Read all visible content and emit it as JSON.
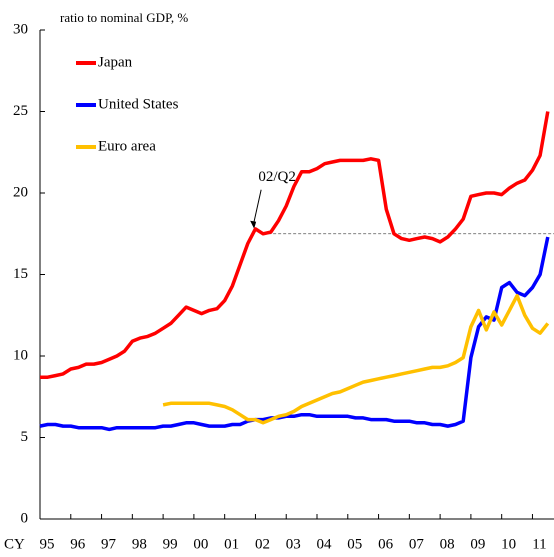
{
  "chart_data": {
    "type": "line",
    "y_label": "ratio to nominal GDP, %",
    "x_prefix": "CY",
    "x_start": 1995,
    "x_step": 0.25,
    "xlim": [
      1995,
      2011.7
    ],
    "xticks": [
      {
        "value": 1995,
        "label": "95"
      },
      {
        "value": 1996,
        "label": "96"
      },
      {
        "value": 1997,
        "label": "97"
      },
      {
        "value": 1998,
        "label": "98"
      },
      {
        "value": 1999,
        "label": "99"
      },
      {
        "value": 2000,
        "label": "00"
      },
      {
        "value": 2001,
        "label": "01"
      },
      {
        "value": 2002,
        "label": "02"
      },
      {
        "value": 2003,
        "label": "03"
      },
      {
        "value": 2004,
        "label": "04"
      },
      {
        "value": 2005,
        "label": "05"
      },
      {
        "value": 2006,
        "label": "06"
      },
      {
        "value": 2007,
        "label": "07"
      },
      {
        "value": 2008,
        "label": "08"
      },
      {
        "value": 2009,
        "label": "09"
      },
      {
        "value": 2010,
        "label": "10"
      },
      {
        "value": 2011,
        "label": "11"
      }
    ],
    "ylim": [
      0,
      30
    ],
    "yticks": [
      0,
      5,
      10,
      15,
      20,
      25,
      30
    ],
    "grid": false,
    "legend": "top-left",
    "annotation": {
      "text": "02/Q2",
      "x": 2002.25,
      "y": 17.5
    },
    "series": [
      {
        "name": "Japan",
        "color": "#ff0000",
        "values": [
          8.7,
          8.7,
          8.8,
          8.9,
          9.2,
          9.3,
          9.5,
          9.5,
          9.6,
          9.8,
          10.0,
          10.3,
          10.9,
          11.1,
          11.2,
          11.4,
          11.7,
          12.0,
          12.5,
          13.0,
          12.8,
          12.6,
          12.8,
          12.9,
          13.4,
          14.3,
          15.6,
          16.9,
          17.8,
          17.5,
          17.6,
          18.3,
          19.2,
          20.4,
          21.3,
          21.3,
          21.5,
          21.8,
          21.9,
          22.0,
          22.0,
          22.0,
          22.0,
          22.1,
          22.0,
          19.0,
          17.5,
          17.2,
          17.1,
          17.2,
          17.3,
          17.2,
          17.0,
          17.3,
          17.8,
          18.4,
          19.8,
          19.9,
          20.0,
          20.0,
          19.9,
          20.3,
          20.6,
          20.8,
          21.4,
          22.3,
          25.0
        ]
      },
      {
        "name": "United States",
        "color": "#0000ff",
        "values": [
          5.7,
          5.8,
          5.8,
          5.7,
          5.7,
          5.6,
          5.6,
          5.6,
          5.6,
          5.5,
          5.6,
          5.6,
          5.6,
          5.6,
          5.6,
          5.6,
          5.7,
          5.7,
          5.8,
          5.9,
          5.9,
          5.8,
          5.7,
          5.7,
          5.7,
          5.8,
          5.8,
          6.0,
          6.1,
          6.1,
          6.2,
          6.2,
          6.3,
          6.3,
          6.4,
          6.4,
          6.3,
          6.3,
          6.3,
          6.3,
          6.3,
          6.2,
          6.2,
          6.1,
          6.1,
          6.1,
          6.0,
          6.0,
          6.0,
          5.9,
          5.9,
          5.8,
          5.8,
          5.7,
          5.8,
          6.0,
          9.9,
          11.8,
          12.4,
          12.2,
          14.2,
          14.5,
          13.9,
          13.7,
          14.2,
          15.0,
          17.3
        ]
      },
      {
        "name": "Euro area",
        "color": "#ffc000",
        "values": [
          null,
          null,
          null,
          null,
          null,
          null,
          null,
          null,
          null,
          null,
          null,
          null,
          null,
          null,
          null,
          null,
          7.0,
          7.1,
          7.1,
          7.1,
          7.1,
          7.1,
          7.1,
          7.0,
          6.9,
          6.7,
          6.4,
          6.1,
          6.1,
          5.9,
          6.1,
          6.3,
          6.4,
          6.6,
          6.9,
          7.1,
          7.3,
          7.5,
          7.7,
          7.8,
          8.0,
          8.2,
          8.4,
          8.5,
          8.6,
          8.7,
          8.8,
          8.9,
          9.0,
          9.1,
          9.2,
          9.3,
          9.3,
          9.4,
          9.6,
          9.9,
          11.8,
          12.8,
          11.6,
          12.7,
          11.9,
          12.8,
          13.7,
          12.5,
          11.7,
          11.4,
          12.0
        ]
      }
    ]
  }
}
